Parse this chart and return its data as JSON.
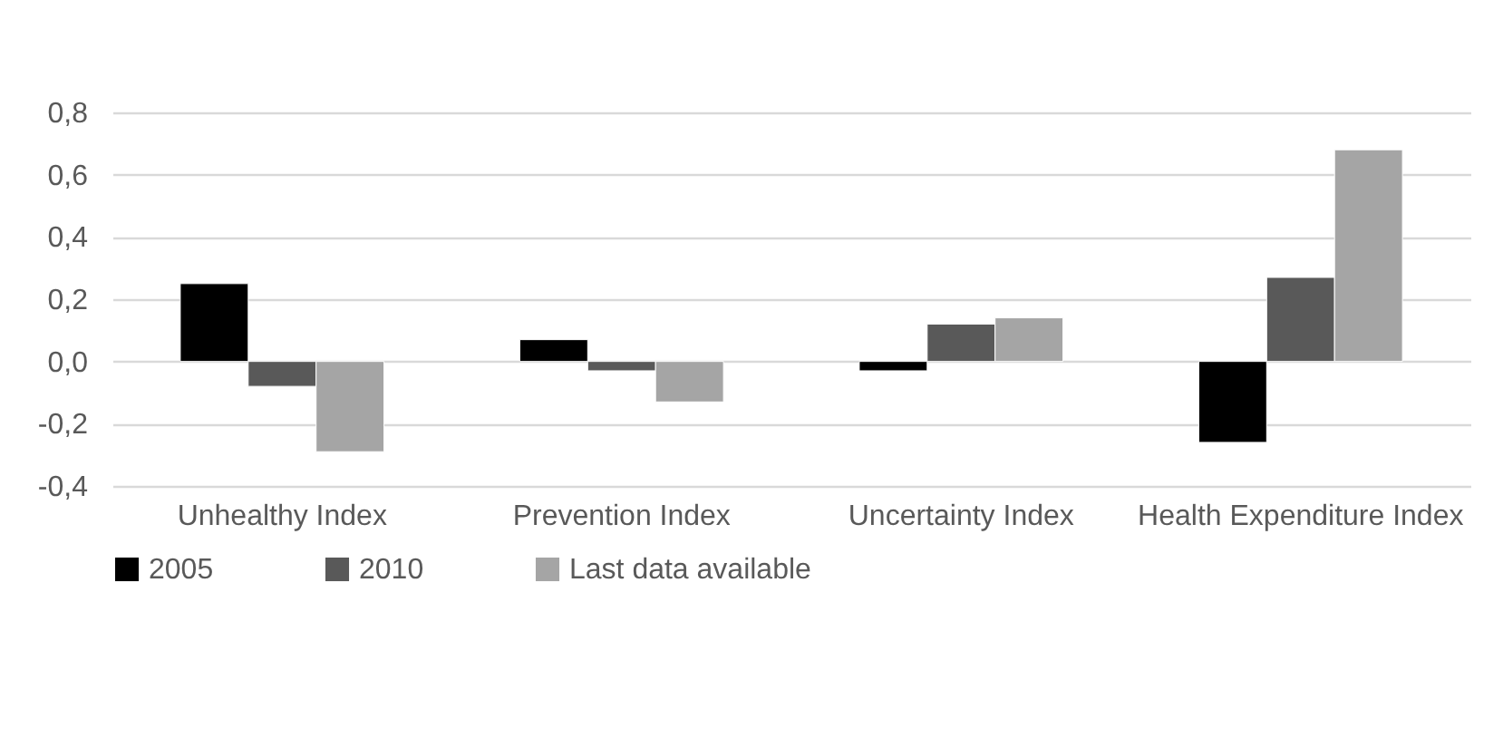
{
  "chart_data": {
    "type": "bar",
    "categories": [
      "Unhealthy Index",
      "Prevention Index",
      "Uncertainty Index",
      "Health Expenditure Index"
    ],
    "series": [
      {
        "name": "2005",
        "color": "#000000",
        "values": [
          0.25,
          0.07,
          -0.03,
          -0.26
        ]
      },
      {
        "name": "2010",
        "color": "#595959",
        "values": [
          -0.08,
          -0.03,
          0.12,
          0.27
        ]
      },
      {
        "name": "Last data available",
        "color": "#a5a5a5",
        "values": [
          -0.29,
          -0.13,
          0.14,
          0.68
        ]
      }
    ],
    "ylim": [
      -0.4,
      0.8
    ],
    "yticks": [
      {
        "value": -0.4,
        "label": "-0,4"
      },
      {
        "value": -0.2,
        "label": "-0,2"
      },
      {
        "value": 0,
        "label": "0,0"
      },
      {
        "value": 0.2,
        "label": "0,2"
      },
      {
        "value": 0.4,
        "label": "0,4"
      },
      {
        "value": 0.6,
        "label": "0,6"
      },
      {
        "value": 0.8,
        "label": "0,8"
      }
    ],
    "grid": "y",
    "legend": "bottom"
  }
}
